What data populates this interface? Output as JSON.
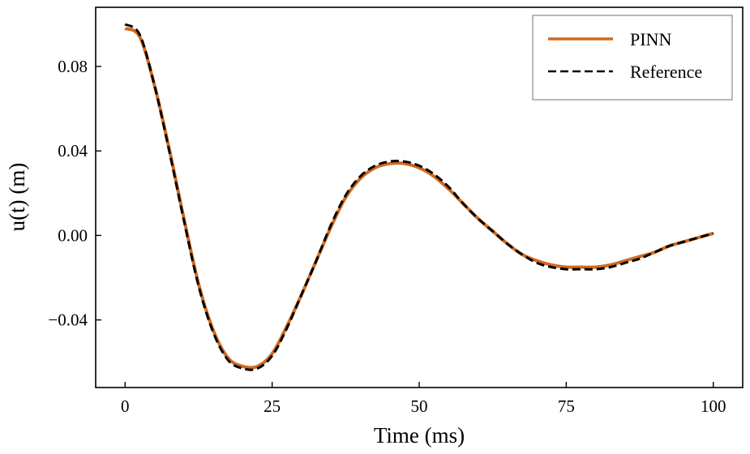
{
  "chart_data": {
    "type": "line",
    "title": "",
    "xlabel": "Time (ms)",
    "ylabel": "u(t) (m)",
    "xlim": [
      -5,
      105
    ],
    "ylim": [
      -0.072,
      0.108
    ],
    "xticks": [
      0,
      25,
      50,
      75,
      100
    ],
    "xtick_labels": [
      "0",
      "25",
      "50",
      "75",
      "100"
    ],
    "yticks": [
      -0.04,
      0.0,
      0.04,
      0.08
    ],
    "ytick_labels": [
      "−0.04",
      "0.00",
      "0.04",
      "0.08"
    ],
    "grid": false,
    "legend_position": "top-right",
    "series": [
      {
        "name": "PINN",
        "color": "#d2691e",
        "style": "solid",
        "x": [
          0,
          2.5,
          5,
          7.5,
          10,
          12.5,
          15,
          17.5,
          20,
          22.5,
          25,
          27.5,
          30,
          32.5,
          35,
          37.5,
          40,
          42.5,
          45,
          47.5,
          50,
          52.5,
          55,
          57.5,
          60,
          62.5,
          65,
          67.5,
          70,
          72.5,
          75,
          77.5,
          80,
          82.5,
          85,
          87.5,
          90,
          92.5,
          95,
          97.5,
          100
        ],
        "y": [
          0.098,
          0.094,
          0.071,
          0.041,
          0.008,
          -0.023,
          -0.045,
          -0.058,
          -0.062,
          -0.062,
          -0.056,
          -0.043,
          -0.028,
          -0.012,
          0.004,
          0.018,
          0.027,
          0.032,
          0.034,
          0.034,
          0.032,
          0.028,
          0.022,
          0.015,
          0.008,
          0.002,
          -0.004,
          -0.009,
          -0.012,
          -0.014,
          -0.015,
          -0.015,
          -0.015,
          -0.014,
          -0.012,
          -0.01,
          -0.008,
          -0.005,
          -0.003,
          -0.001,
          0.001
        ]
      },
      {
        "name": "Reference",
        "color": "#000000",
        "style": "dashed",
        "x": [
          0,
          2.5,
          5,
          7.5,
          10,
          12.5,
          15,
          17.5,
          20,
          22.5,
          25,
          27.5,
          30,
          32.5,
          35,
          37.5,
          40,
          42.5,
          45,
          47.5,
          50,
          52.5,
          55,
          57.5,
          60,
          62.5,
          65,
          67.5,
          70,
          72.5,
          75,
          77.5,
          80,
          82.5,
          85,
          87.5,
          90,
          92.5,
          95,
          97.5,
          100
        ],
        "y": [
          0.1,
          0.095,
          0.071,
          0.04,
          0.007,
          -0.024,
          -0.046,
          -0.059,
          -0.063,
          -0.063,
          -0.057,
          -0.044,
          -0.028,
          -0.012,
          0.005,
          0.019,
          0.028,
          0.033,
          0.035,
          0.035,
          0.033,
          0.029,
          0.023,
          0.015,
          0.008,
          0.002,
          -0.004,
          -0.009,
          -0.013,
          -0.015,
          -0.016,
          -0.016,
          -0.016,
          -0.015,
          -0.013,
          -0.011,
          -0.008,
          -0.005,
          -0.003,
          -0.001,
          0.001
        ]
      }
    ]
  }
}
